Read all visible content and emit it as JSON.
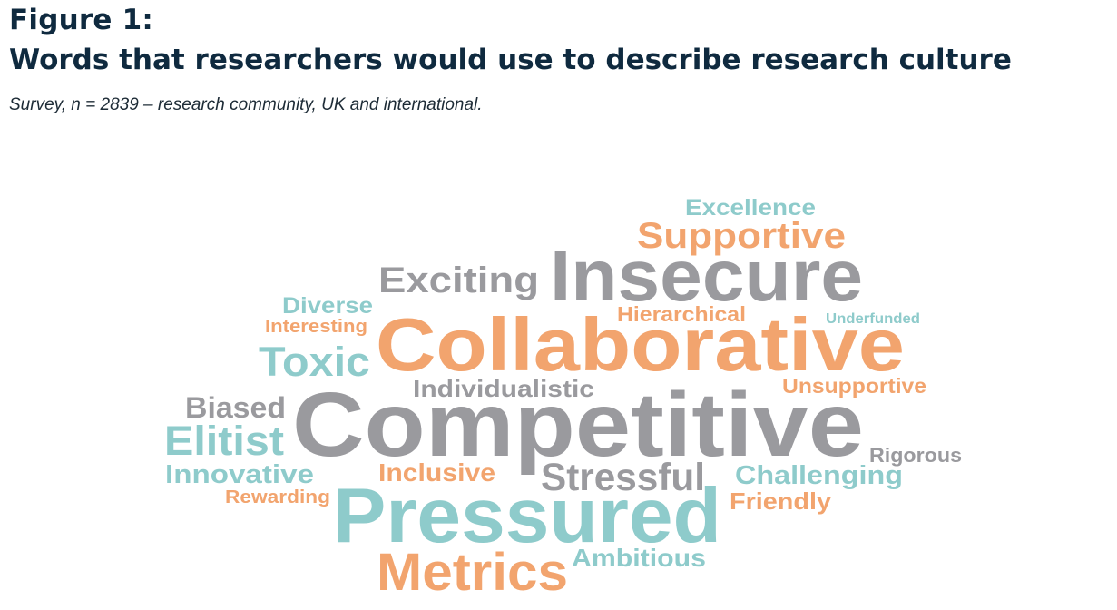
{
  "figure": {
    "label": "Figure 1:",
    "title": "Words that researchers would use to describe research culture",
    "subtitle": "Survey, n = 2839 – research community, UK and international."
  },
  "colors": {
    "grey": "#9a9a9e",
    "orange": "#f2a46e",
    "teal": "#8ecbcb",
    "title": "#0f2a3f"
  },
  "chart_data": {
    "type": "word_cloud",
    "words": [
      {
        "text": "Excellence",
        "color": "teal"
      },
      {
        "text": "Supportive",
        "color": "orange"
      },
      {
        "text": "Exciting",
        "color": "grey"
      },
      {
        "text": "Insecure",
        "color": "grey"
      },
      {
        "text": "Diverse",
        "color": "teal"
      },
      {
        "text": "Interesting",
        "color": "orange"
      },
      {
        "text": "Hierarchical",
        "color": "orange"
      },
      {
        "text": "Underfunded",
        "color": "teal"
      },
      {
        "text": "Collaborative",
        "color": "orange"
      },
      {
        "text": "Toxic",
        "color": "teal"
      },
      {
        "text": "Individualistic",
        "color": "grey"
      },
      {
        "text": "Unsupportive",
        "color": "orange"
      },
      {
        "text": "Biased",
        "color": "grey"
      },
      {
        "text": "Competitive",
        "color": "grey"
      },
      {
        "text": "Elitist",
        "color": "teal"
      },
      {
        "text": "Rigorous",
        "color": "grey"
      },
      {
        "text": "Innovative",
        "color": "teal"
      },
      {
        "text": "Inclusive",
        "color": "orange"
      },
      {
        "text": "Stressful",
        "color": "grey"
      },
      {
        "text": "Challenging",
        "color": "teal"
      },
      {
        "text": "Rewarding",
        "color": "orange"
      },
      {
        "text": "Friendly",
        "color": "orange"
      },
      {
        "text": "Pressured",
        "color": "teal"
      },
      {
        "text": "Ambitious",
        "color": "teal"
      },
      {
        "text": "Metrics",
        "color": "orange"
      }
    ]
  }
}
